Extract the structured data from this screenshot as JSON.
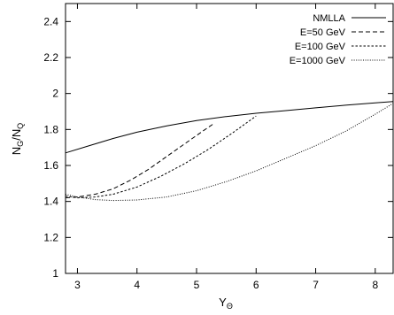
{
  "chart_data": {
    "type": "line",
    "xlabel": {
      "main": "Y",
      "sub": "Θ"
    },
    "ylabel": {
      "main": "N",
      "sub1": "G",
      "sep": "/N",
      "sub2": "Q"
    },
    "xlim": [
      2.8,
      8.3
    ],
    "ylim": [
      1.0,
      2.5
    ],
    "xticks": [
      "3",
      "4",
      "5",
      "6",
      "7",
      "8"
    ],
    "yticks": [
      "1",
      "1.2",
      "1.4",
      "1.6",
      "1.8",
      "2",
      "2.2",
      "2.4"
    ],
    "legend_position": "top-right",
    "series": [
      {
        "name": "NMLLA",
        "dash": "solid",
        "x": [
          2.8,
          3.2,
          3.6,
          4.0,
          4.5,
          5.0,
          5.5,
          6.0,
          6.5,
          7.0,
          7.5,
          8.0,
          8.3
        ],
        "y": [
          1.67,
          1.71,
          1.75,
          1.785,
          1.82,
          1.85,
          1.872,
          1.89,
          1.905,
          1.92,
          1.935,
          1.948,
          1.955
        ]
      },
      {
        "name": "E=50 GeV",
        "dash": "dashed",
        "x": [
          2.8,
          3.0,
          3.3,
          3.6,
          3.9,
          4.2,
          4.5,
          4.8,
          5.1,
          5.3
        ],
        "y": [
          1.42,
          1.425,
          1.44,
          1.47,
          1.52,
          1.58,
          1.65,
          1.72,
          1.79,
          1.835
        ]
      },
      {
        "name": "E=100 GeV",
        "dash": "dotted-medium",
        "x": [
          2.8,
          3.0,
          3.3,
          3.6,
          4.0,
          4.4,
          4.8,
          5.2,
          5.6,
          6.0
        ],
        "y": [
          1.43,
          1.42,
          1.425,
          1.44,
          1.48,
          1.54,
          1.61,
          1.69,
          1.78,
          1.875
        ]
      },
      {
        "name": "E=1000 GeV",
        "dash": "dotted-fine",
        "x": [
          2.8,
          3.0,
          3.3,
          3.6,
          4.0,
          4.5,
          5.0,
          5.5,
          6.0,
          6.5,
          7.0,
          7.5,
          8.0,
          8.3
        ],
        "y": [
          1.44,
          1.425,
          1.41,
          1.405,
          1.408,
          1.425,
          1.46,
          1.51,
          1.57,
          1.64,
          1.71,
          1.79,
          1.885,
          1.945
        ]
      }
    ]
  }
}
